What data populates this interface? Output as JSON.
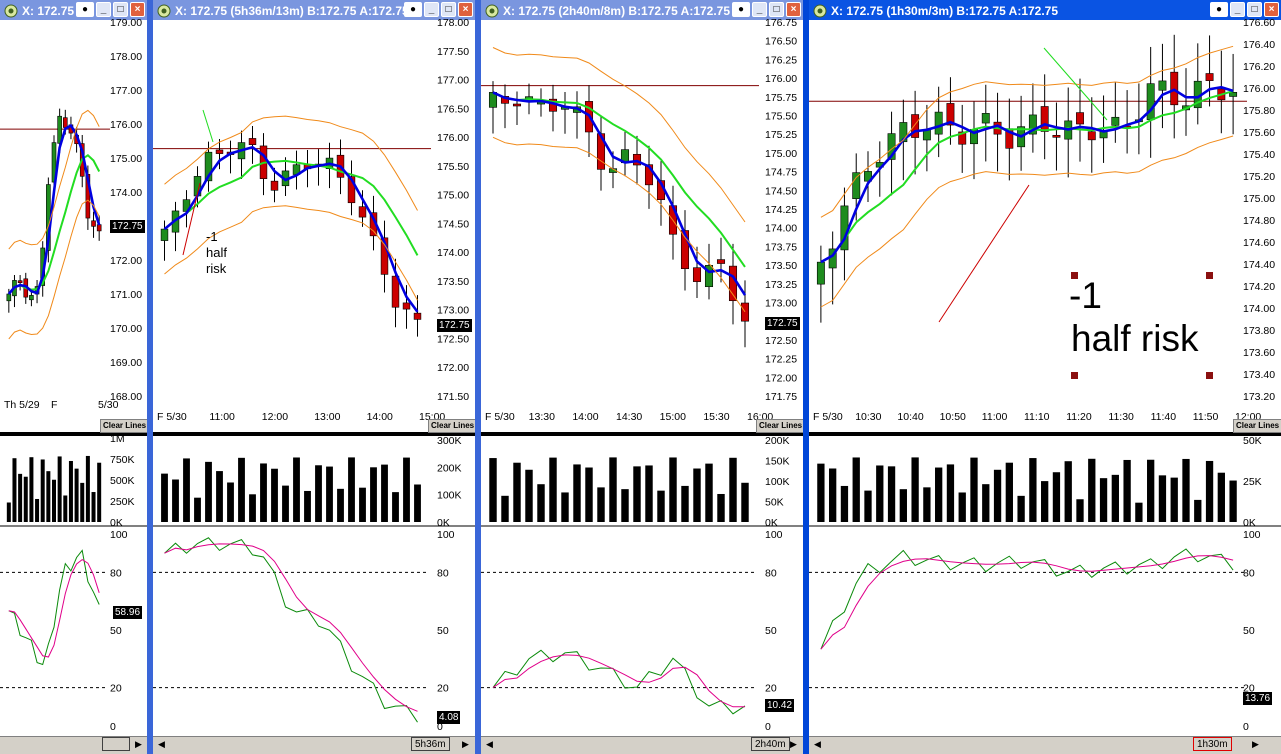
{
  "windows": [
    {
      "title": "X: 172.75",
      "price_tag": "172.75",
      "osc_tag": "58.96",
      "clear_label": "Clear Lines",
      "price_axis": [
        "179.00",
        "178.00",
        "177.00",
        "176.00",
        "175.00",
        "174.00",
        "173.00",
        "172.00",
        "171.00",
        "170.00",
        "169.00",
        "168.00"
      ],
      "time_axis": [
        "Th 5/29",
        "F",
        "5/30"
      ],
      "vol_axis": [
        "1M",
        "750K",
        "500K",
        "250K",
        "0K"
      ],
      "osc_axis": [
        "100",
        "80",
        "50",
        "20",
        "0"
      ],
      "scroll_label": ""
    },
    {
      "title": "X: 172.75 (5h36m/13m)  B:172.75 A:172.75",
      "price_tag": "172.75",
      "osc_tag": "4.08",
      "clear_label": "Clear Lines",
      "price_axis": [
        "178.00",
        "177.50",
        "177.00",
        "176.50",
        "176.00",
        "175.50",
        "175.00",
        "174.50",
        "174.00",
        "173.50",
        "173.00",
        "172.50",
        "172.00",
        "171.50"
      ],
      "time_axis": [
        "F 5/30",
        "11:00",
        "12:00",
        "13:00",
        "14:00",
        "15:00"
      ],
      "vol_axis": [
        "300K",
        "200K",
        "100K",
        "0K"
      ],
      "osc_axis": [
        "100",
        "80",
        "50",
        "20",
        "0"
      ],
      "scroll_label": "5h36m",
      "annotation": [
        "-1",
        "half",
        "risk"
      ]
    },
    {
      "title": "X: 172.75 (2h40m/8m)  B:172.75 A:172.75",
      "price_tag": "172.75",
      "osc_tag": "10.42",
      "clear_label": "Clear Lines",
      "price_axis": [
        "176.75",
        "176.50",
        "176.25",
        "176.00",
        "175.75",
        "175.50",
        "175.25",
        "175.00",
        "174.75",
        "174.50",
        "174.25",
        "174.00",
        "173.75",
        "173.50",
        "173.25",
        "173.00",
        "172.75",
        "172.50",
        "172.25",
        "172.00",
        "171.75"
      ],
      "time_axis": [
        "F 5/30",
        "13:30",
        "14:00",
        "14:30",
        "15:00",
        "15:30",
        "16:00"
      ],
      "vol_axis": [
        "200K",
        "150K",
        "100K",
        "50K",
        "0K"
      ],
      "osc_axis": [
        "100",
        "80",
        "50",
        "20",
        "0"
      ],
      "scroll_label": "2h40m"
    },
    {
      "title": "X: 172.75 (1h30m/3m)  B:172.75 A:172.75",
      "price_tag": "",
      "osc_tag": "13.76",
      "clear_label": "Clear Lines",
      "price_axis": [
        "176.60",
        "176.40",
        "176.20",
        "176.00",
        "175.80",
        "175.60",
        "175.40",
        "175.20",
        "175.00",
        "174.80",
        "174.60",
        "174.40",
        "174.20",
        "174.00",
        "173.80",
        "173.60",
        "173.40",
        "173.20"
      ],
      "time_axis": [
        "F 5/30",
        "10:30",
        "10:40",
        "10:50",
        "11:00",
        "11:10",
        "11:20",
        "11:30",
        "11:40",
        "11:50",
        "12:00"
      ],
      "vol_axis": [
        "50K",
        "25K",
        "0K"
      ],
      "osc_axis": [
        "100",
        "80",
        "50",
        "20",
        "0"
      ],
      "scroll_label": "1h30m",
      "annotation": [
        "-1",
        "half risk"
      ]
    }
  ],
  "colors": {
    "title_inactive": "#7a96df",
    "title_active": "#0a54e3",
    "bull": "#1e8c1e",
    "bear": "#cc0000",
    "ma_fast": "#0000e0",
    "ma_slow": "#22dd22",
    "band": "#f08a1a",
    "line": "#800000",
    "stoch_k": "#0a8a0a",
    "stoch_d": "#e0008a"
  },
  "icons": {
    "app": "app-logo-icon",
    "minimize": "minimize-icon",
    "maximize": "maximize-icon",
    "close": "close-icon",
    "scroll_left": "arrow-left-icon",
    "scroll_right": "arrow-right-icon"
  }
}
